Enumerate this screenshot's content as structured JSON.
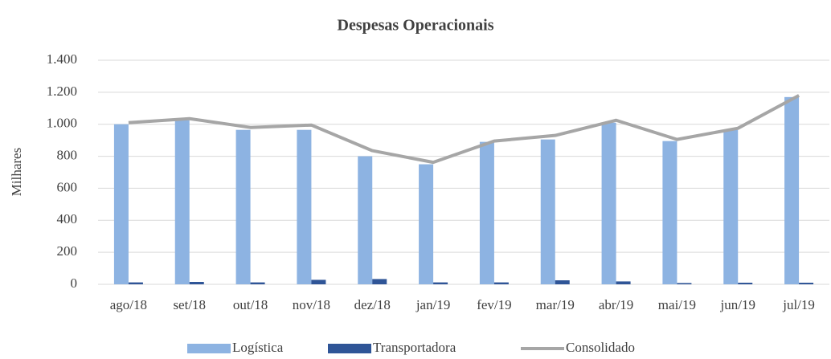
{
  "chart_data": {
    "type": "bar",
    "title": "Despesas Operacionais",
    "ylabel": "Milhares",
    "categories": [
      "ago/18",
      "set/18",
      "out/18",
      "nov/18",
      "dez/18",
      "jan/19",
      "fev/19",
      "mar/19",
      "abr/19",
      "mai/19",
      "jun/19",
      "jul/19"
    ],
    "series": [
      {
        "name": "Logística",
        "type": "bar",
        "color": "#8db3e2",
        "values": [
          1000,
          1025,
          965,
          965,
          800,
          750,
          890,
          905,
          1010,
          895,
          965,
          1170
        ]
      },
      {
        "name": "Transportadora",
        "type": "bar",
        "color": "#2f5597",
        "values": [
          12,
          15,
          12,
          28,
          33,
          12,
          12,
          25,
          18,
          8,
          10,
          10
        ]
      },
      {
        "name": "Consolidado",
        "type": "line",
        "color": "#a6a6a6",
        "values": [
          1010,
          1035,
          980,
          995,
          835,
          762,
          895,
          930,
          1025,
          905,
          975,
          1180
        ]
      }
    ],
    "ylim": [
      0,
      1400
    ],
    "yticks": [
      0,
      200,
      400,
      600,
      800,
      {
        "value": 1000,
        "label": "1.000"
      },
      {
        "value": 1200,
        "label": "1.200"
      },
      {
        "value": 1400,
        "label": "1.400"
      }
    ],
    "grid": true,
    "legend": "bottom"
  }
}
